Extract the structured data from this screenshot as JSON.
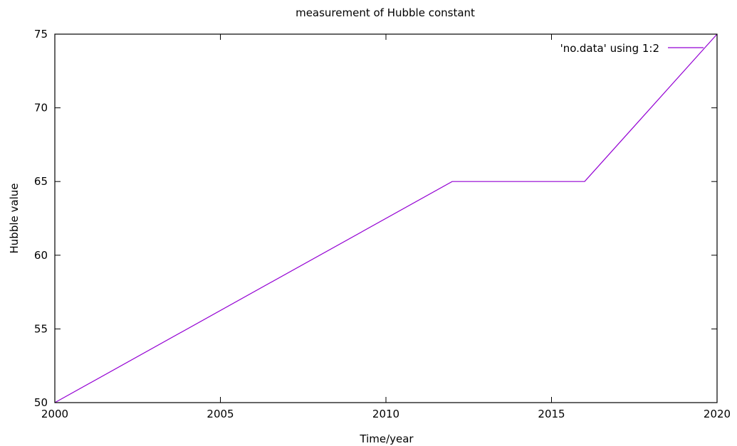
{
  "chart_data": {
    "type": "line",
    "title": "measurement of Hubble constant",
    "xlabel": "Time/year",
    "ylabel": "Hubble value",
    "xlim": [
      2000,
      2020
    ],
    "ylim": [
      50,
      75
    ],
    "xticks": [
      2000,
      2005,
      2010,
      2015,
      2020
    ],
    "yticks": [
      50,
      55,
      60,
      65,
      70,
      75
    ],
    "grid": false,
    "legend_position": "top-right",
    "series": [
      {
        "name": "'no.data' using 1:2",
        "color": "#9400d3",
        "x": [
          2000,
          2012,
          2016,
          2020
        ],
        "y": [
          50,
          65,
          65,
          75
        ]
      }
    ]
  }
}
